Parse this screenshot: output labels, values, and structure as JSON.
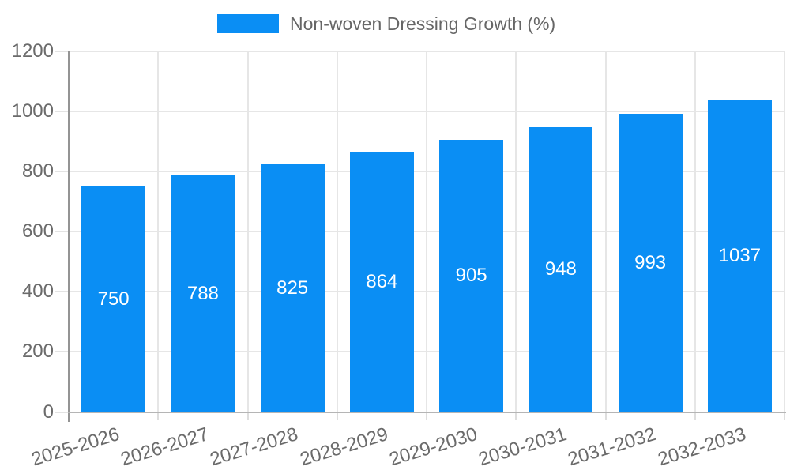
{
  "legend": {
    "label": "Non-woven Dressing Growth (%)"
  },
  "chart_data": {
    "type": "bar",
    "title": "",
    "xlabel": "",
    "ylabel": "",
    "categories": [
      "2025-2026",
      "2026-2027",
      "2027-2028",
      "2028-2029",
      "2029-2030",
      "2030-2031",
      "2031-2032",
      "2032-2033"
    ],
    "series": [
      {
        "name": "Non-woven Dressing Growth (%)",
        "values": [
          750,
          788,
          825,
          864,
          905,
          948,
          993,
          1037
        ]
      }
    ],
    "bar_value_labels": [
      "750",
      "788",
      "825",
      "864",
      "905",
      "948",
      "993",
      "1037"
    ],
    "ylim": [
      0,
      1200
    ],
    "yticks": [
      0,
      200,
      400,
      600,
      800,
      1000,
      1200
    ],
    "grid": "both",
    "legend_position": "top-center",
    "x_label_rotation_deg": -17,
    "colors": {
      "bar": "#0A8EF4",
      "bar_value_label": "#ffffff",
      "gridline": "#e6e6e6",
      "axis_text": "#6b6b6b",
      "legend_text": "#666666",
      "y_axis_line": "#949494",
      "x_axis_line": "#b5b5b5",
      "background": "#ffffff"
    }
  }
}
